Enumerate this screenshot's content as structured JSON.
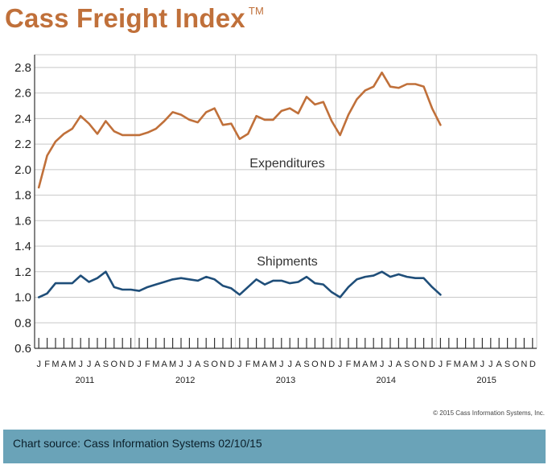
{
  "title": "Cass Freight Index",
  "trademark": "TM",
  "copyright": "© 2015 Cass Information Systems, Inc.",
  "source_note": "Chart source: Cass Information Systems 02/10/15",
  "colors": {
    "title": "#c0703a",
    "expenditures": "#c0703a",
    "shipments": "#1f4e79",
    "banner": "#6aa3b8",
    "grid": "#c8c8c8"
  },
  "chart_data": {
    "type": "line",
    "ylim": [
      0.6,
      2.9
    ],
    "y_ticks": [
      "0.6",
      "0.8",
      "1.0",
      "1.2",
      "1.4",
      "1.6",
      "1.8",
      "2.0",
      "2.2",
      "2.4",
      "2.6",
      "2.8"
    ],
    "month_labels": [
      "J",
      "F",
      "M",
      "A",
      "M",
      "J",
      "J",
      "A",
      "S",
      "O",
      "N",
      "D"
    ],
    "years": [
      "2011",
      "2012",
      "2013",
      "2014",
      "2015"
    ],
    "grid": true,
    "series": [
      {
        "name": "Expenditures",
        "x": [
          "2011-01",
          "2011-02",
          "2011-03",
          "2011-04",
          "2011-05",
          "2011-06",
          "2011-07",
          "2011-08",
          "2011-09",
          "2011-10",
          "2011-11",
          "2011-12",
          "2012-01",
          "2012-02",
          "2012-03",
          "2012-04",
          "2012-05",
          "2012-06",
          "2012-07",
          "2012-08",
          "2012-09",
          "2012-10",
          "2012-11",
          "2012-12",
          "2013-01",
          "2013-02",
          "2013-03",
          "2013-04",
          "2013-05",
          "2013-06",
          "2013-07",
          "2013-08",
          "2013-09",
          "2013-10",
          "2013-11",
          "2013-12",
          "2014-01",
          "2014-02",
          "2014-03",
          "2014-04",
          "2014-05",
          "2014-06",
          "2014-07",
          "2014-08",
          "2014-09",
          "2014-10",
          "2014-11",
          "2014-12",
          "2015-01"
        ],
        "values": [
          1.86,
          2.11,
          2.22,
          2.28,
          2.32,
          2.42,
          2.36,
          2.28,
          2.38,
          2.3,
          2.27,
          2.27,
          2.27,
          2.29,
          2.32,
          2.38,
          2.45,
          2.43,
          2.39,
          2.37,
          2.45,
          2.48,
          2.35,
          2.36,
          2.24,
          2.28,
          2.42,
          2.39,
          2.39,
          2.46,
          2.48,
          2.44,
          2.57,
          2.51,
          2.53,
          2.38,
          2.27,
          2.43,
          2.55,
          2.62,
          2.65,
          2.76,
          2.65,
          2.64,
          2.67,
          2.67,
          2.65,
          2.48,
          2.35
        ]
      },
      {
        "name": "Shipments",
        "x": [
          "2011-01",
          "2011-02",
          "2011-03",
          "2011-04",
          "2011-05",
          "2011-06",
          "2011-07",
          "2011-08",
          "2011-09",
          "2011-10",
          "2011-11",
          "2011-12",
          "2012-01",
          "2012-02",
          "2012-03",
          "2012-04",
          "2012-05",
          "2012-06",
          "2012-07",
          "2012-08",
          "2012-09",
          "2012-10",
          "2012-11",
          "2012-12",
          "2013-01",
          "2013-02",
          "2013-03",
          "2013-04",
          "2013-05",
          "2013-06",
          "2013-07",
          "2013-08",
          "2013-09",
          "2013-10",
          "2013-11",
          "2013-12",
          "2014-01",
          "2014-02",
          "2014-03",
          "2014-04",
          "2014-05",
          "2014-06",
          "2014-07",
          "2014-08",
          "2014-09",
          "2014-10",
          "2014-11",
          "2014-12",
          "2015-01"
        ],
        "values": [
          1.0,
          1.03,
          1.11,
          1.11,
          1.11,
          1.17,
          1.12,
          1.15,
          1.2,
          1.08,
          1.06,
          1.06,
          1.05,
          1.08,
          1.1,
          1.12,
          1.14,
          1.15,
          1.14,
          1.13,
          1.16,
          1.14,
          1.09,
          1.07,
          1.02,
          1.08,
          1.14,
          1.1,
          1.13,
          1.13,
          1.11,
          1.12,
          1.16,
          1.11,
          1.1,
          1.04,
          1.0,
          1.08,
          1.14,
          1.16,
          1.17,
          1.2,
          1.16,
          1.18,
          1.16,
          1.15,
          1.15,
          1.08,
          1.02
        ]
      }
    ]
  }
}
